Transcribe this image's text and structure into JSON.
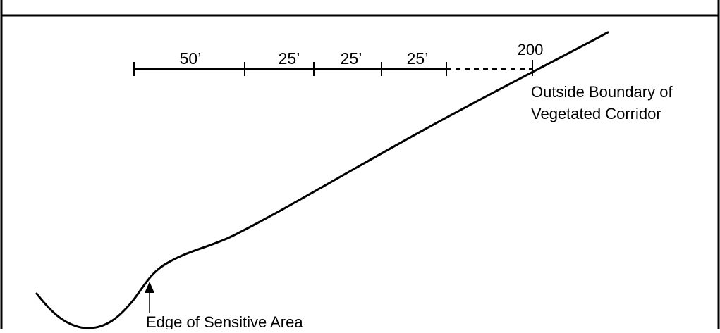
{
  "diagram": {
    "segments": [
      {
        "label": "50’",
        "length_ft": 50
      },
      {
        "label": "25’",
        "length_ft": 25
      },
      {
        "label": "25’",
        "length_ft": 25
      },
      {
        "label": "25’",
        "length_ft": 25
      }
    ],
    "end_label": "200",
    "boundary_label": {
      "line1": "Outside Boundary of",
      "line2": "Vegetated Corridor"
    },
    "edge_label": "Edge of Sensitive Area",
    "colors": {
      "stroke": "#000000",
      "background": "#ffffff"
    }
  }
}
